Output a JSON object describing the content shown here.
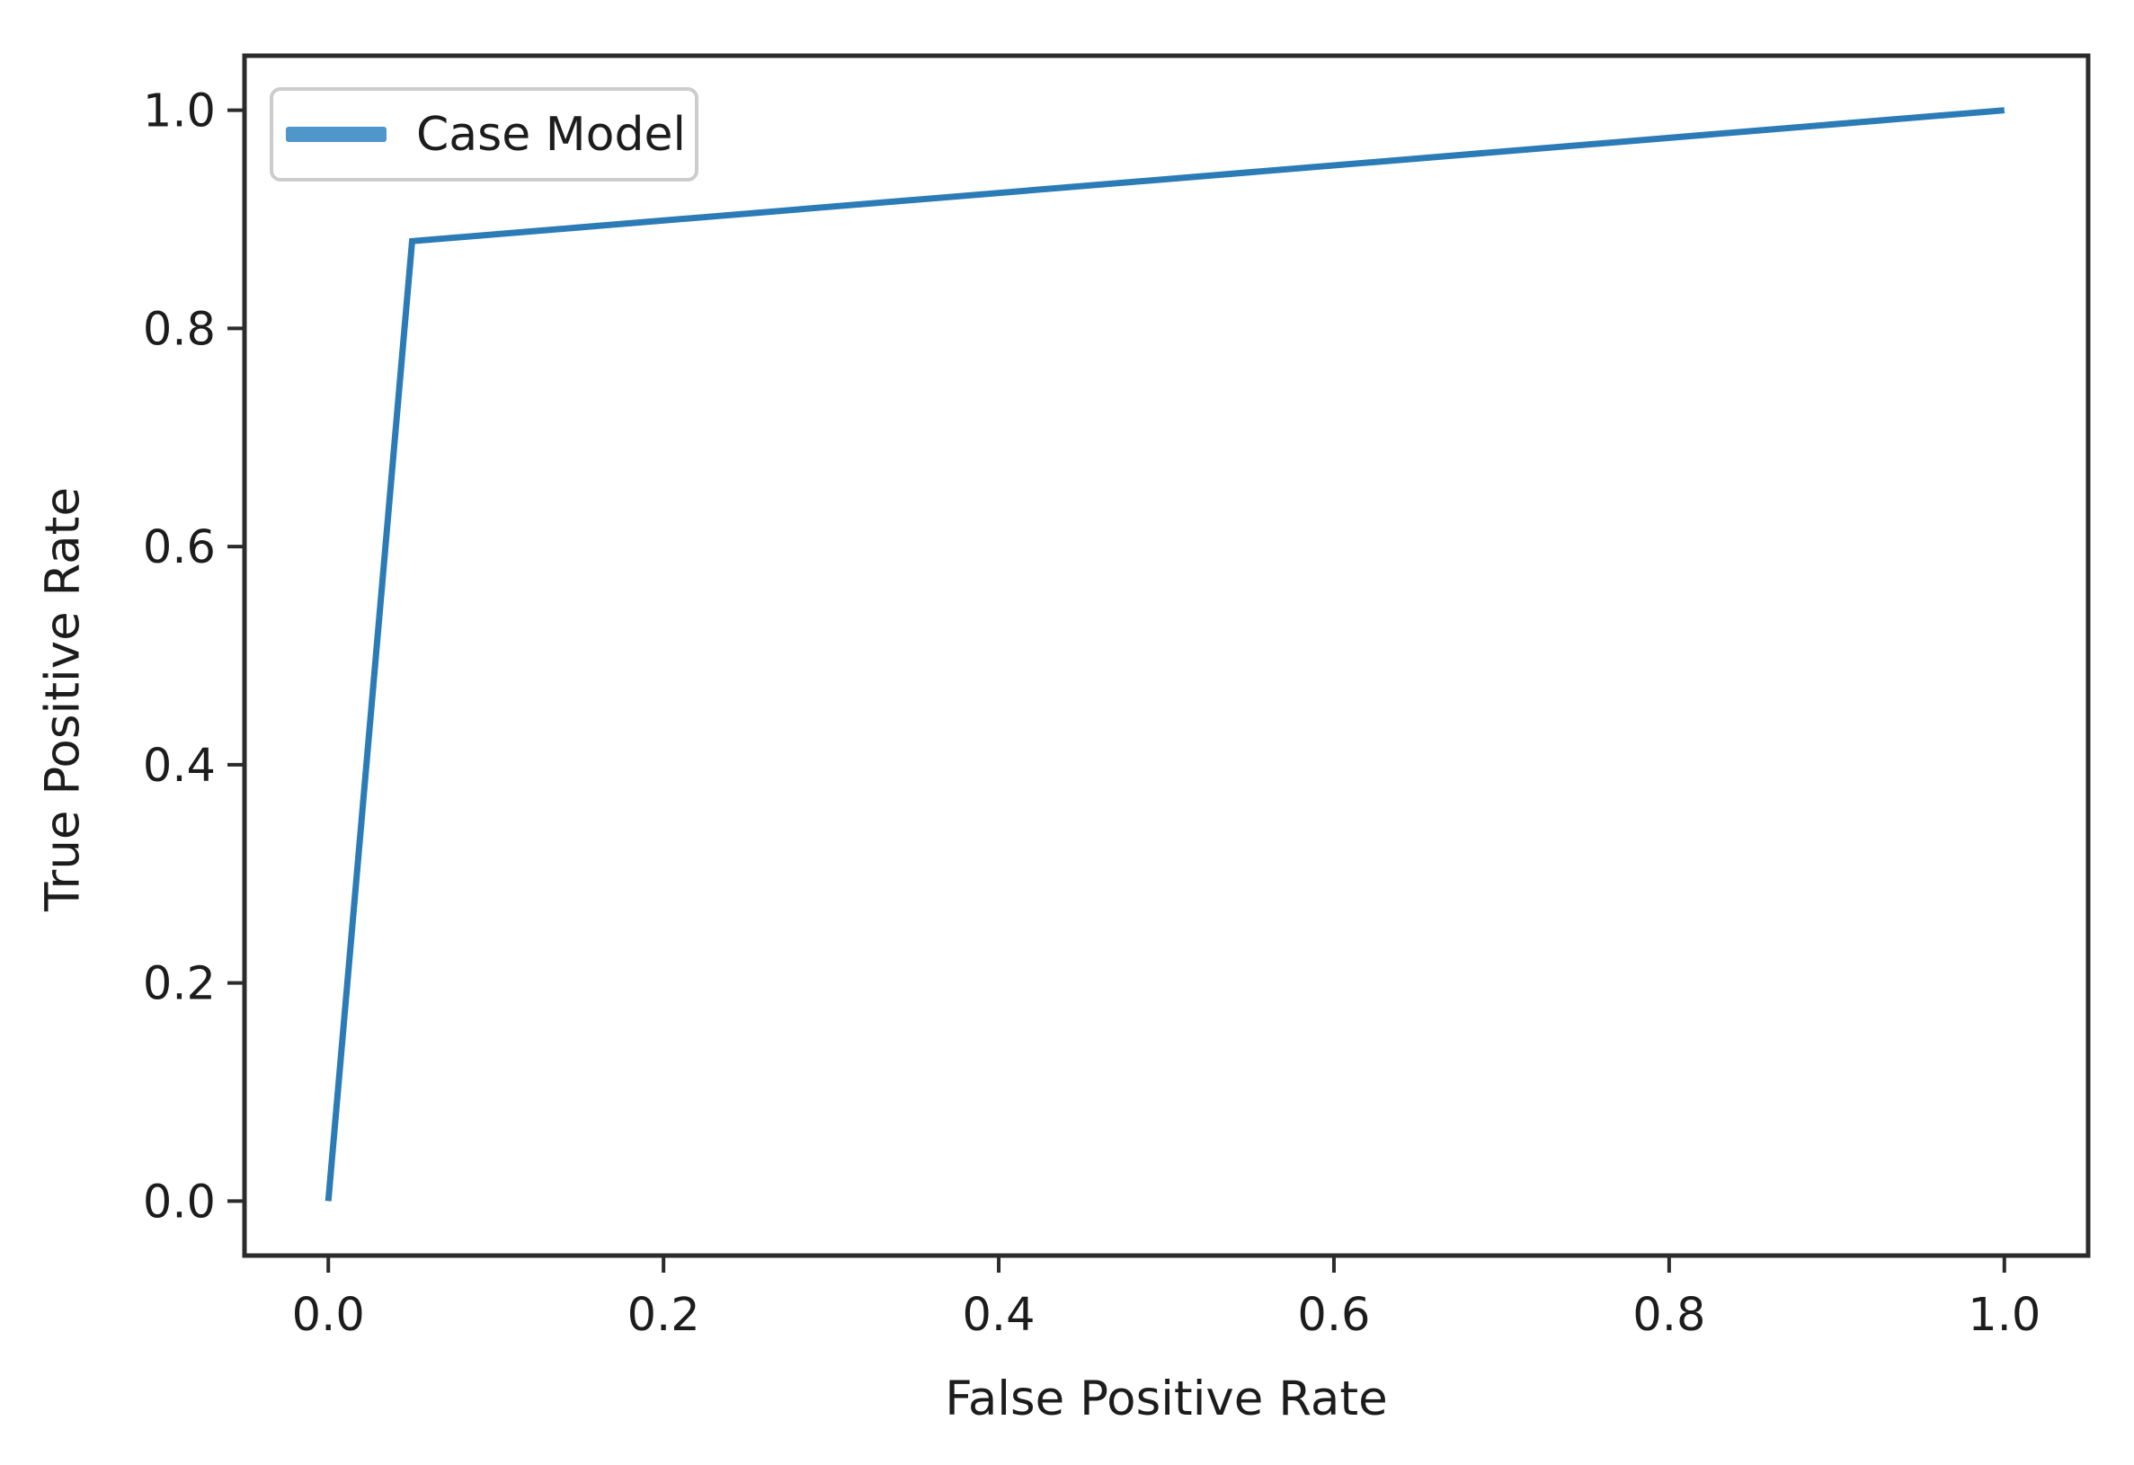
{
  "chart_data": {
    "type": "line",
    "title": "",
    "xlabel": "False Positive Rate",
    "ylabel": "True Positive Rate",
    "xlim": [
      -0.05,
      1.05
    ],
    "ylim": [
      -0.05,
      1.05
    ],
    "x_ticks": [
      0.0,
      0.2,
      0.4,
      0.6,
      0.8,
      1.0
    ],
    "x_tick_labels": [
      "0.0",
      "0.2",
      "0.4",
      "0.6",
      "0.8",
      "1.0"
    ],
    "y_ticks": [
      0.0,
      0.2,
      0.4,
      0.6,
      0.8,
      1.0
    ],
    "y_tick_labels": [
      "0.0",
      "0.2",
      "0.4",
      "0.6",
      "0.8",
      "1.0"
    ],
    "grid": false,
    "legend_position": "upper left",
    "series": [
      {
        "name": "Case Model",
        "points": [
          [
            0.0,
            0.0
          ],
          [
            0.05,
            0.88
          ],
          [
            1.0,
            1.0
          ]
        ],
        "line_color": "#2b7bb6",
        "swatch_color": "#4f97ca"
      }
    ]
  },
  "colors": {
    "background": "#ffffff",
    "spine": "#2b2b2b",
    "tick_text": "#1c1c1c",
    "legend_border": "#cccccc"
  }
}
